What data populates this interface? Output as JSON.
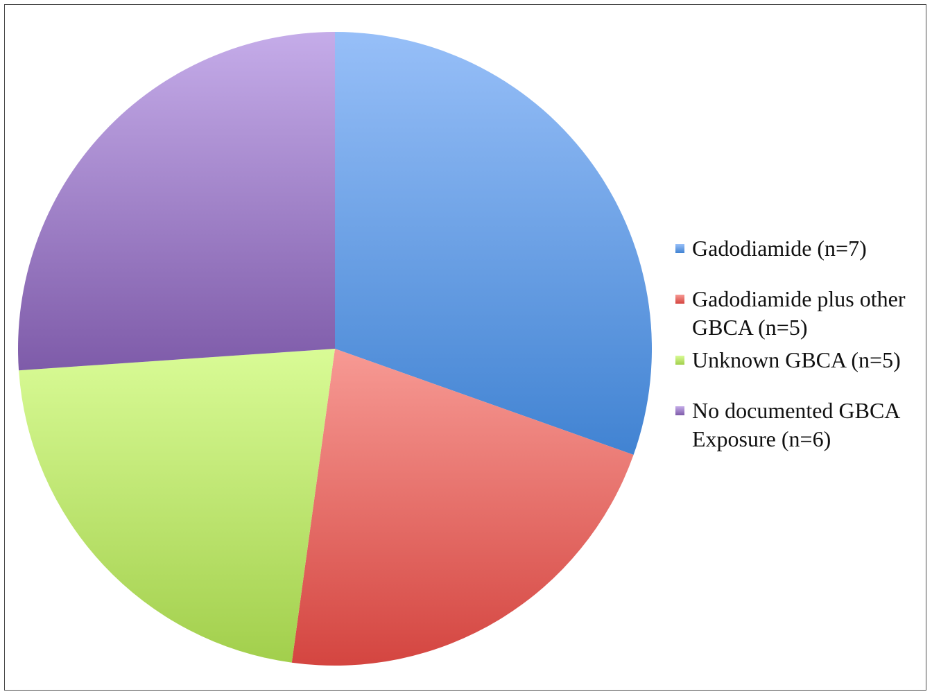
{
  "chart_data": {
    "type": "pie",
    "title": "",
    "unit": "n",
    "total": 23,
    "slices": [
      {
        "label": "Gadodiamide (n=7)",
        "value": 7,
        "color": "#5a95e3",
        "color_light": "#97bff8",
        "color_dark": "#4183d2"
      },
      {
        "label": "Gadodiamide plus other GBCA (n=5)",
        "value": 5,
        "color": "#e2605d",
        "color_light": "#f79a94",
        "color_dark": "#d44540"
      },
      {
        "label": "Unknown GBCA (n=5)",
        "value": 5,
        "color": "#bce87a",
        "color_light": "#d9fb96",
        "color_dark": "#a2cf4c"
      },
      {
        "label": "No documented GBCA Exposure (n=6)",
        "value": 6,
        "color": "#9e82c8",
        "color_light": "#c5ace9",
        "color_dark": "#7e5ba9"
      }
    ],
    "start_angle": "12 o'clock",
    "direction": "clockwise",
    "legend_position": "right"
  }
}
